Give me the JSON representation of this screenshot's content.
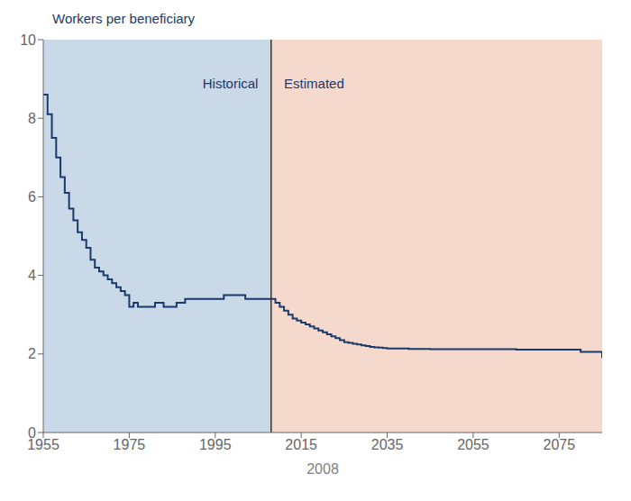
{
  "chart_data": {
    "type": "line",
    "title": "Workers per beneficiary",
    "x_label": "2008",
    "x": [
      1955,
      1956,
      1957,
      1958,
      1959,
      1960,
      1961,
      1962,
      1963,
      1964,
      1965,
      1966,
      1967,
      1968,
      1969,
      1970,
      1971,
      1972,
      1973,
      1974,
      1975,
      1976,
      1977,
      1978,
      1979,
      1980,
      1981,
      1982,
      1983,
      1984,
      1985,
      1986,
      1987,
      1988,
      1989,
      1990,
      1991,
      1992,
      1993,
      1994,
      1995,
      1996,
      1997,
      1998,
      1999,
      2000,
      2001,
      2002,
      2003,
      2004,
      2005,
      2006,
      2007,
      2008,
      2009,
      2010,
      2011,
      2012,
      2013,
      2014,
      2015,
      2016,
      2017,
      2018,
      2019,
      2020,
      2021,
      2022,
      2023,
      2024,
      2025,
      2026,
      2027,
      2028,
      2029,
      2030,
      2031,
      2032,
      2033,
      2034,
      2035,
      2040,
      2045,
      2050,
      2055,
      2060,
      2065,
      2070,
      2075,
      2080,
      2085
    ],
    "values": [
      8.6,
      8.1,
      7.5,
      7.0,
      6.5,
      6.1,
      5.7,
      5.4,
      5.1,
      4.9,
      4.7,
      4.4,
      4.2,
      4.1,
      4.0,
      3.9,
      3.8,
      3.7,
      3.6,
      3.5,
      3.2,
      3.3,
      3.2,
      3.2,
      3.2,
      3.2,
      3.3,
      3.3,
      3.2,
      3.2,
      3.2,
      3.3,
      3.3,
      3.4,
      3.4,
      3.4,
      3.4,
      3.4,
      3.4,
      3.4,
      3.4,
      3.4,
      3.5,
      3.5,
      3.5,
      3.5,
      3.5,
      3.4,
      3.4,
      3.4,
      3.4,
      3.4,
      3.4,
      3.4,
      3.3,
      3.2,
      3.1,
      3.0,
      2.9,
      2.85,
      2.8,
      2.75,
      2.7,
      2.65,
      2.6,
      2.55,
      2.5,
      2.45,
      2.4,
      2.35,
      2.3,
      2.28,
      2.26,
      2.24,
      2.22,
      2.2,
      2.18,
      2.17,
      2.16,
      2.15,
      2.14,
      2.13,
      2.12,
      2.12,
      2.12,
      2.12,
      2.11,
      2.11,
      2.11,
      2.05,
      1.9
    ],
    "color": "#1a3a6b",
    "line_style": "steps",
    "xlim": [
      1955,
      2085
    ],
    "xticks": [
      1955,
      1975,
      1995,
      2015,
      2035,
      2055,
      2075
    ],
    "ylim": [
      0,
      10
    ],
    "yticks": [
      0,
      2,
      4,
      6,
      8,
      10
    ],
    "grid": true,
    "divider": 2008,
    "regions": [
      {
        "x_from": 1955,
        "x_to": 2008,
        "color": "#c9d9e8"
      },
      {
        "x_from": 2008,
        "x_to": 2085,
        "color": "#f5d9cc"
      }
    ],
    "annotations": [
      {
        "text": "Historical",
        "x": 2005,
        "y": 9.1
      },
      {
        "text": "Estimated",
        "x": 2011,
        "y": 9.1
      }
    ]
  }
}
